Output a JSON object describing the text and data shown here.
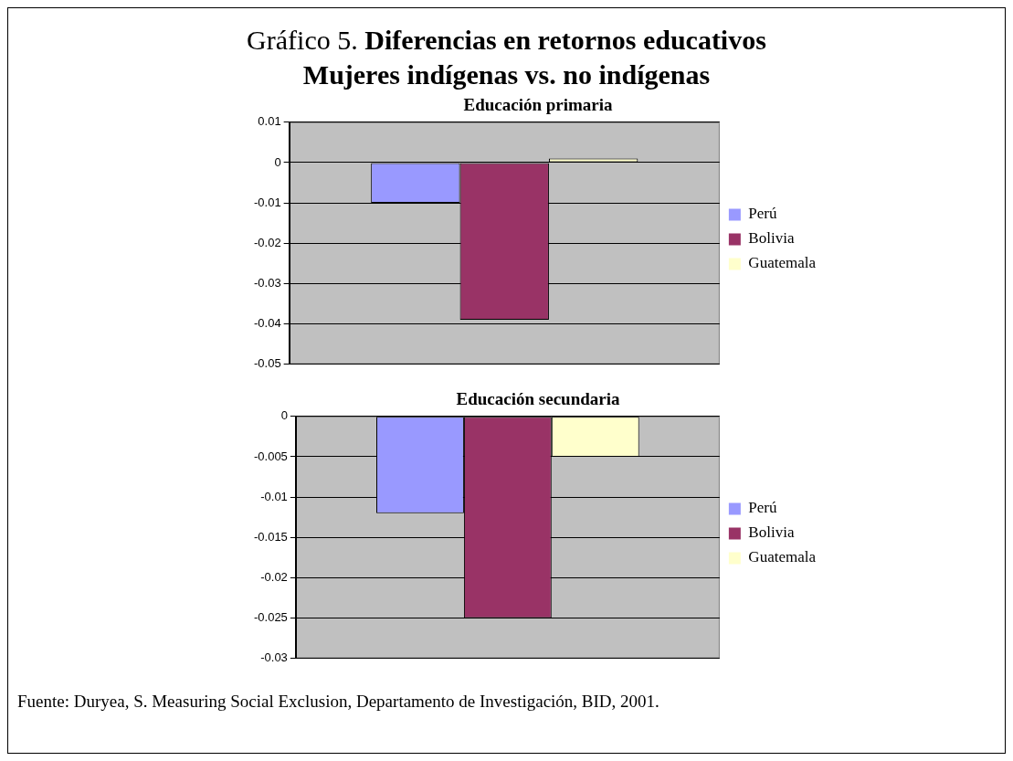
{
  "chart_data": [
    {
      "type": "other",
      "title": "Gráfico 5.",
      "subtitle": "Diferencias en retornos educativos Mujeres indígenas vs. no indígenas"
    },
    {
      "type": "bar",
      "title": "Educación primaria",
      "categories": [
        null
      ],
      "series": [
        {
          "name": "Perú",
          "color": "#9999ff",
          "values": [
            -0.01
          ]
        },
        {
          "name": "Bolivia",
          "color": "#993366",
          "values": [
            -0.039
          ]
        },
        {
          "name": "Guatemala",
          "color": "#ffffcc",
          "values": [
            0.001
          ]
        }
      ],
      "ylim": [
        -0.05,
        0.01
      ],
      "yticks": [
        -0.05,
        -0.04,
        -0.03,
        -0.02,
        -0.01,
        0,
        0.01
      ],
      "grid": "y",
      "legend": "right"
    },
    {
      "type": "bar",
      "title": "Educación secundaria",
      "categories": [
        null
      ],
      "series": [
        {
          "name": "Perú",
          "color": "#9999ff",
          "values": [
            -0.012
          ]
        },
        {
          "name": "Bolivia",
          "color": "#993366",
          "values": [
            -0.025
          ]
        },
        {
          "name": "Guatemala",
          "color": "#ffffcc",
          "values": [
            -0.005
          ]
        }
      ],
      "ylim": [
        -0.03,
        0
      ],
      "yticks": [
        -0.03,
        -0.025,
        -0.02,
        -0.015,
        -0.01,
        -0.005,
        0
      ],
      "grid": "y",
      "legend": "right"
    },
    {
      "type": "other",
      "annotations": [
        "Fuente: Duryea, S. Measuring Social Exclusion, Departamento de Investigación, BID, 2001."
      ]
    }
  ]
}
